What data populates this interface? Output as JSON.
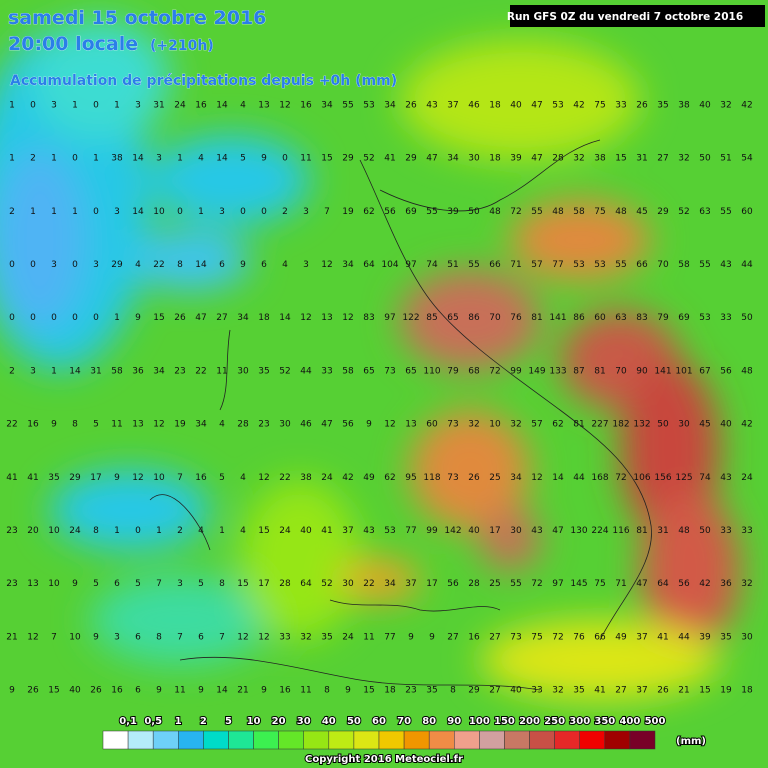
{
  "header": {
    "date": "samedi 15 octobre 2016",
    "time": "20:00 locale",
    "lead": "(+210h)",
    "subtitle": "Accumulation de précipitations depuis +0h (mm)",
    "run": "Run GFS 0Z du vendredi 7 octobre 2016"
  },
  "grid": {
    "rows": [
      [
        1,
        0,
        3,
        1,
        0,
        1,
        3,
        31,
        24,
        16,
        14,
        4,
        13,
        12,
        16,
        34,
        55,
        53,
        34,
        26,
        43,
        37,
        46,
        18,
        40,
        47,
        53,
        42,
        75,
        33,
        26,
        35,
        38,
        40,
        32,
        42
      ],
      [
        1,
        2,
        1,
        0,
        1,
        38,
        14,
        3,
        1,
        4,
        14,
        5,
        9,
        0,
        11,
        15,
        29,
        52,
        41,
        29,
        47,
        34,
        30,
        18,
        39,
        47,
        28,
        32,
        38,
        15,
        31,
        27,
        32,
        50,
        51,
        54
      ],
      [
        2,
        1,
        1,
        1,
        0,
        3,
        14,
        10,
        0,
        1,
        3,
        0,
        0,
        2,
        3,
        7,
        19,
        62,
        56,
        69,
        55,
        39,
        50,
        48,
        72,
        55,
        48,
        58,
        75,
        48,
        45,
        29,
        52,
        63,
        55,
        60
      ],
      [
        0,
        0,
        3,
        0,
        3,
        29,
        4,
        22,
        8,
        14,
        6,
        9,
        6,
        4,
        3,
        12,
        34,
        64,
        104,
        97,
        74,
        51,
        55,
        66,
        71,
        57,
        77,
        53,
        53,
        55,
        66,
        70,
        58,
        55,
        43,
        44
      ],
      [
        0,
        0,
        0,
        0,
        0,
        1,
        9,
        15,
        26,
        47,
        27,
        34,
        18,
        14,
        12,
        13,
        12,
        83,
        97,
        122,
        85,
        65,
        86,
        70,
        76,
        81,
        141,
        86,
        60,
        63,
        83,
        79,
        69,
        53,
        33,
        50
      ],
      [
        2,
        3,
        1,
        14,
        31,
        58,
        36,
        34,
        23,
        22,
        11,
        30,
        35,
        52,
        44,
        33,
        58,
        65,
        73,
        65,
        110,
        79,
        68,
        72,
        99,
        149,
        133,
        87,
        81,
        70,
        90,
        141,
        101,
        67,
        56,
        48
      ],
      [
        22,
        16,
        9,
        8,
        5,
        11,
        13,
        12,
        19,
        34,
        4,
        28,
        23,
        30,
        46,
        47,
        56,
        9,
        12,
        13,
        60,
        73,
        32,
        10,
        32,
        57,
        62,
        81,
        227,
        182,
        132,
        50,
        30,
        45,
        40,
        42
      ],
      [
        41,
        41,
        35,
        29,
        17,
        9,
        12,
        10,
        7,
        16,
        5,
        4,
        12,
        22,
        38,
        24,
        42,
        49,
        62,
        95,
        118,
        73,
        26,
        25,
        34,
        12,
        14,
        44,
        168,
        72,
        106,
        156,
        125,
        74,
        43,
        24
      ],
      [
        23,
        20,
        10,
        24,
        8,
        1,
        0,
        1,
        2,
        4,
        1,
        4,
        15,
        24,
        40,
        41,
        37,
        43,
        53,
        77,
        99,
        142,
        40,
        17,
        30,
        43,
        47,
        130,
        224,
        116,
        81,
        31,
        48,
        50,
        33,
        33
      ],
      [
        23,
        13,
        10,
        9,
        5,
        6,
        5,
        7,
        3,
        5,
        8,
        15,
        17,
        28,
        64,
        52,
        30,
        22,
        34,
        37,
        17,
        56,
        28,
        25,
        55,
        72,
        97,
        145,
        75,
        71,
        47,
        64,
        56,
        42,
        36,
        32
      ],
      [
        21,
        12,
        7,
        10,
        9,
        3,
        6,
        8,
        7,
        6,
        7,
        12,
        12,
        33,
        32,
        35,
        24,
        11,
        77,
        9,
        9,
        27,
        16,
        27,
        73,
        75,
        72,
        76,
        66,
        49,
        37,
        41,
        44,
        39,
        35,
        30
      ],
      [
        9,
        26,
        15,
        40,
        26,
        16,
        6,
        9,
        11,
        9,
        14,
        21,
        9,
        16,
        11,
        8,
        9,
        15,
        18,
        23,
        35,
        8,
        29,
        27,
        40,
        33,
        32,
        35,
        41,
        27,
        37,
        26,
        21,
        15,
        19,
        18
      ]
    ]
  },
  "legend": {
    "labels": [
      "0,1",
      "0,5",
      "1",
      "2",
      "5",
      "10",
      "20",
      "30",
      "40",
      "50",
      "60",
      "70",
      "80",
      "90",
      "100",
      "150",
      "200",
      "250",
      "300",
      "350",
      "400",
      "500"
    ],
    "colors": [
      "#ffffff",
      "#b4ecfa",
      "#6ed0f8",
      "#28b4f0",
      "#00dcc8",
      "#1ee696",
      "#3cf050",
      "#64e628",
      "#96e614",
      "#beeb14",
      "#dce614",
      "#f0c800",
      "#f09600",
      "#f08c46",
      "#f0a08c",
      "#d2a0a0",
      "#c87864",
      "#c85046",
      "#e62828",
      "#f00000",
      "#a00000",
      "#780028"
    ],
    "unit": "(mm)"
  },
  "footer": {
    "copyright": "Copyright 2016 Meteociel.fr"
  }
}
